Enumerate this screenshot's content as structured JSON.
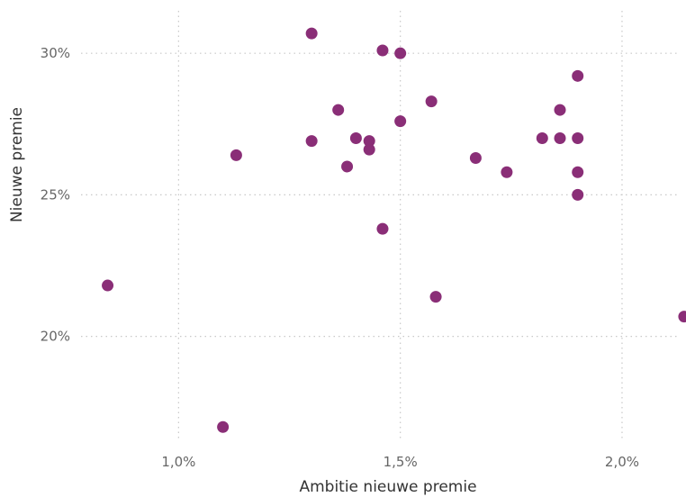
{
  "chart_data": {
    "type": "scatter",
    "title": "",
    "xlabel": "Ambitie nieuwe premie",
    "ylabel": "Nieuwe premie",
    "xlim": [
      0.0078,
      0.0213
    ],
    "ylim": [
      0.163,
      0.315
    ],
    "x_ticks": [
      {
        "value": 0.01,
        "label": "1,0%"
      },
      {
        "value": 0.015,
        "label": "1,5%"
      },
      {
        "value": 0.02,
        "label": "2,0%"
      }
    ],
    "y_ticks": [
      {
        "value": 0.2,
        "label": "20%"
      },
      {
        "value": 0.25,
        "label": "25%"
      },
      {
        "value": 0.3,
        "label": "30%"
      }
    ],
    "grid": true,
    "legend": "none",
    "point_color": "#8a2e77",
    "points": [
      {
        "x": 0.0084,
        "y": 0.218
      },
      {
        "x": 0.011,
        "y": 0.168
      },
      {
        "x": 0.0113,
        "y": 0.264
      },
      {
        "x": 0.013,
        "y": 0.307
      },
      {
        "x": 0.013,
        "y": 0.269
      },
      {
        "x": 0.0136,
        "y": 0.28
      },
      {
        "x": 0.0138,
        "y": 0.26
      },
      {
        "x": 0.014,
        "y": 0.27
      },
      {
        "x": 0.0143,
        "y": 0.269
      },
      {
        "x": 0.0143,
        "y": 0.266
      },
      {
        "x": 0.0146,
        "y": 0.301
      },
      {
        "x": 0.0146,
        "y": 0.238
      },
      {
        "x": 0.015,
        "y": 0.3
      },
      {
        "x": 0.015,
        "y": 0.276
      },
      {
        "x": 0.0157,
        "y": 0.283
      },
      {
        "x": 0.0158,
        "y": 0.214
      },
      {
        "x": 0.0167,
        "y": 0.263
      },
      {
        "x": 0.0174,
        "y": 0.258
      },
      {
        "x": 0.0182,
        "y": 0.27
      },
      {
        "x": 0.0186,
        "y": 0.28
      },
      {
        "x": 0.0186,
        "y": 0.27
      },
      {
        "x": 0.019,
        "y": 0.292
      },
      {
        "x": 0.019,
        "y": 0.27
      },
      {
        "x": 0.019,
        "y": 0.258
      },
      {
        "x": 0.019,
        "y": 0.25
      },
      {
        "x": 0.0214,
        "y": 0.207
      }
    ]
  }
}
